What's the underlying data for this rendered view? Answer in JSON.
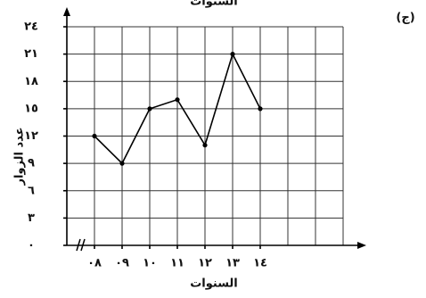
{
  "chart_data": {
    "type": "line",
    "caption": "السنوات",
    "panel_label": "(ج)",
    "x_label": "السنوات",
    "y_label": "عدد الزوار",
    "categories": [
      "٠٨",
      "٠٩",
      "١٠",
      "١١",
      "١٢",
      "١٣",
      "١٤"
    ],
    "values": [
      12,
      9,
      15,
      16,
      11,
      21,
      15
    ],
    "color": "#000000",
    "ylim": [
      0,
      24
    ],
    "yticks": [
      {
        "value": 0,
        "label": "٠"
      },
      {
        "value": 3,
        "label": "٣"
      },
      {
        "value": 6,
        "label": "٦"
      },
      {
        "value": 9,
        "label": "٩"
      },
      {
        "value": 12,
        "label": "١٢"
      },
      {
        "value": 15,
        "label": "١٥"
      },
      {
        "value": 18,
        "label": "١٨"
      },
      {
        "value": 21,
        "label": "٢١"
      },
      {
        "value": 24,
        "label": "٢٤"
      }
    ],
    "grid": true
  }
}
